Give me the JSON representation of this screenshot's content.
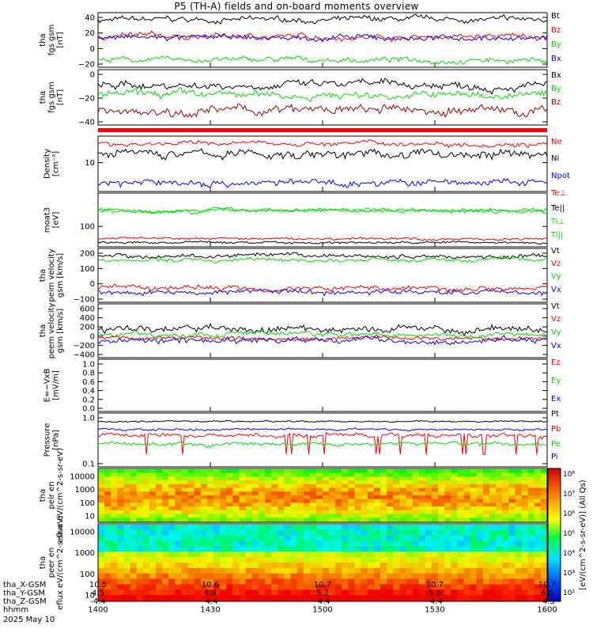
{
  "page": {
    "title": "P5 (TH-A) fields and on-board moments overview",
    "date": "2025 May 10"
  },
  "colors": {
    "black": "#000000",
    "red": "#ff0000",
    "green": "#00dd00",
    "blue": "#0000ff",
    "darkred": "#a00000"
  },
  "x_axis": {
    "tick_rows": [
      {
        "label": "tha_X-GSM",
        "values": [
          "10.5",
          "10.6",
          "10.7",
          "10.7",
          "10.7"
        ]
      },
      {
        "label": "tha_Y-GSM",
        "values": [
          "4.5",
          "4.8",
          "5.2",
          "5.6",
          "6.0"
        ]
      },
      {
        "label": "tha_Z-GSM",
        "values": [
          "-4.4",
          "-4.4",
          "-4.4",
          "-4.4",
          "-4.3"
        ]
      },
      {
        "label": "hhmm",
        "values": [
          "1400",
          "1430",
          "1500",
          "1530",
          "1600"
        ]
      }
    ]
  },
  "spectrogram": {
    "colorbar_label": "[eV/(cm^2-s-sr-eV)] (All Qs)",
    "colorbar_ticks": [
      "10⁸",
      "10⁷",
      "10⁶",
      "10⁵",
      "10⁴",
      "10³",
      "10²"
    ]
  },
  "chart_data": [
    {
      "type": "line",
      "ylabel": "tha fgs gsm [nT]",
      "ylim": [
        -30,
        45
      ],
      "y_ticks": [
        "40",
        "20",
        "0",
        "−20"
      ],
      "x": [
        "1400",
        "1430",
        "1500",
        "1530",
        "1600"
      ],
      "series": [
        {
          "name": "Bt",
          "color": "#000000",
          "level": 35,
          "noise": 5
        },
        {
          "name": "Bz",
          "color": "#ff0000",
          "level": 12,
          "noise": 5
        },
        {
          "name": "By",
          "color": "#00dd00",
          "level": -20,
          "noise": 5
        },
        {
          "name": "Bx",
          "color": "#0000ff",
          "level": 10,
          "noise": 5
        }
      ]
    },
    {
      "type": "line",
      "ylabel": "tha fgs gsm [nT]",
      "ylim": [
        -55,
        10
      ],
      "y_ticks": [
        "0",
        "−20",
        "−40"
      ],
      "x": [
        "1400",
        "1430",
        "1500",
        "1530",
        "1600"
      ],
      "series": [
        {
          "name": "Bx",
          "color": "#000000",
          "level": -8,
          "noise": 6
        },
        {
          "name": "By",
          "color": "#00dd00",
          "level": -20,
          "noise": 6
        },
        {
          "name": "Bz",
          "color": "#a00000",
          "level": -38,
          "noise": 7
        }
      ]
    },
    {
      "type": "line",
      "ylabel": "Density [cm⁻³]",
      "ylim": [
        2,
        25
      ],
      "y_ticks": [
        "10"
      ],
      "x": [
        "1400",
        "1430",
        "1500",
        "1530",
        "1600"
      ],
      "series": [
        {
          "name": "Ne",
          "color": "#ff0000",
          "level": 18,
          "noise": 2.5
        },
        {
          "name": "Ni",
          "color": "#000000",
          "level": 11,
          "noise": 3
        },
        {
          "name": "Npot",
          "color": "#0000ff",
          "level": 3,
          "noise": 0.6
        }
      ]
    },
    {
      "type": "line",
      "ylabel": "moat3 [eV]",
      "ylim": [
        60,
        900
      ],
      "y_ticks": [
        "100"
      ],
      "x": [
        "1400",
        "1430",
        "1500",
        "1530",
        "1600"
      ],
      "series": [
        {
          "name": "Te⊥",
          "color": "#ff0000",
          "level": 90,
          "noise": 8
        },
        {
          "name": "Te||",
          "color": "#000000",
          "level": 75,
          "noise": 6
        },
        {
          "name": "Ti⊥",
          "color": "#00dd00",
          "level": 380,
          "noise": 50
        },
        {
          "name": "Ti||",
          "color": "#00dd00",
          "level": 380,
          "noise": 50
        }
      ]
    },
    {
      "type": "line",
      "ylabel": "tha peim velocity gsm [km/s]",
      "ylim": [
        -150,
        260
      ],
      "y_ticks": [
        "200",
        "100",
        "0",
        "−100"
      ],
      "x": [
        "1400",
        "1430",
        "1500",
        "1530",
        "1600"
      ],
      "series": [
        {
          "name": "Vt",
          "color": "#000000",
          "level": 200,
          "noise": 20
        },
        {
          "name": "Vz",
          "color": "#ff0000",
          "level": -40,
          "noise": 25
        },
        {
          "name": "Vy",
          "color": "#00dd00",
          "level": 170,
          "noise": 20
        },
        {
          "name": "Vx",
          "color": "#0000ff",
          "level": -70,
          "noise": 25
        }
      ]
    },
    {
      "type": "line",
      "ylabel": "tha peem velocity gsm [km/s]",
      "ylim": [
        -400,
        650
      ],
      "y_ticks": [
        "600",
        "400",
        "200",
        "0",
        "−200",
        "−400"
      ],
      "x": [
        "1400",
        "1430",
        "1500",
        "1530",
        "1600"
      ],
      "series": [
        {
          "name": "Vt",
          "color": "#000000",
          "level": 150,
          "noise": 90
        },
        {
          "name": "Vz",
          "color": "#ff0000",
          "level": -20,
          "noise": 50
        },
        {
          "name": "Vy",
          "color": "#00dd00",
          "level": 60,
          "noise": 60
        },
        {
          "name": "Vx",
          "color": "#0000ff",
          "level": -60,
          "noise": 80
        }
      ]
    },
    {
      "type": "line",
      "ylabel": "E=−VxB [mV/m]",
      "ylim": [
        0,
        1
      ],
      "y_ticks": [
        "1.0",
        "0.8",
        "0.6",
        "0.4",
        "0.2",
        "0.0"
      ],
      "x": [
        "1400",
        "1430",
        "1500",
        "1530",
        "1600"
      ],
      "series": [
        {
          "name": "Ez",
          "color": "#ff0000",
          "level": null,
          "noise": 0
        },
        {
          "name": "Ey",
          "color": "#00dd00",
          "level": null,
          "noise": 0
        },
        {
          "name": "Ex",
          "color": "#0000ff",
          "level": null,
          "noise": 0
        }
      ]
    },
    {
      "type": "line",
      "ylabel": "Pressure [nPa]",
      "ylim": [
        0.04,
        1.3
      ],
      "y_ticks": [
        "1.0",
        "0.1"
      ],
      "x": [
        "1400",
        "1430",
        "1500",
        "1530",
        "1600"
      ],
      "series": [
        {
          "name": "Pt",
          "color": "#000000",
          "level": 0.75,
          "noise": 0.05
        },
        {
          "name": "Pb",
          "color": "#ff0000",
          "level": 0.3,
          "noise": 0.06
        },
        {
          "name": "Pe",
          "color": "#00dd00",
          "level": 0.18,
          "noise": 0.03
        },
        {
          "name": "Pi",
          "color": "#0000ff",
          "level": 0.45,
          "noise": 0.04
        }
      ]
    },
    {
      "type": "heatmap",
      "ylabel": "tha peir en eflux eV/(cm^2-s-sr-eV)",
      "ylim": [
        5,
        20000
      ],
      "y_ticks": [
        "10000",
        "1000",
        "100",
        "10"
      ]
    },
    {
      "type": "heatmap",
      "ylabel": "tha peer en eflux eV/(cm^2-s-sr-eV)",
      "ylim": [
        5,
        20000
      ],
      "y_ticks": [
        "10000",
        "1000",
        "100",
        "10"
      ]
    }
  ]
}
